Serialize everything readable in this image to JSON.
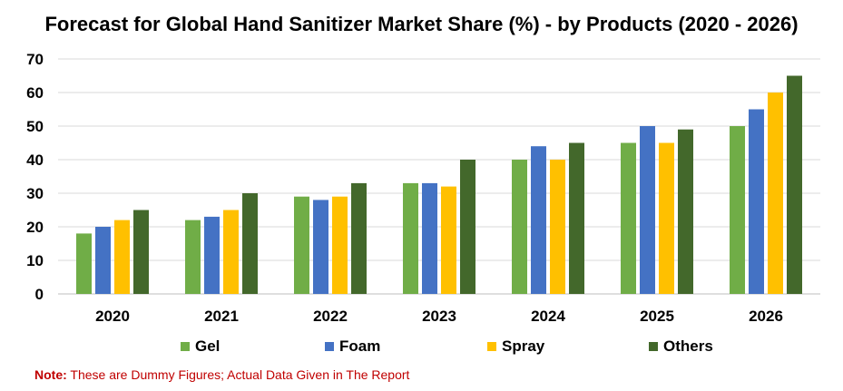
{
  "chart_data": {
    "type": "bar",
    "title": "Forecast for Global Hand Sanitizer Market Share (%) - by Products (2020 - 2026)",
    "xlabel": "",
    "ylabel": "",
    "categories": [
      "2020",
      "2021",
      "2022",
      "2023",
      "2024",
      "2025",
      "2026"
    ],
    "ylim": [
      0,
      70
    ],
    "yticks": [
      0,
      10,
      20,
      30,
      40,
      50,
      60,
      70
    ],
    "grid": true,
    "legend_position": "bottom",
    "series": [
      {
        "name": "Gel",
        "color": "#70ad47",
        "values": [
          18,
          22,
          29,
          33,
          40,
          45,
          50
        ]
      },
      {
        "name": "Foam",
        "color": "#4472c4",
        "values": [
          20,
          23,
          28,
          33,
          44,
          50,
          55
        ]
      },
      {
        "name": "Spray",
        "color": "#ffc000",
        "values": [
          22,
          25,
          29,
          32,
          40,
          45,
          60
        ]
      },
      {
        "name": "Others",
        "color": "#43682b",
        "values": [
          25,
          30,
          33,
          40,
          45,
          49,
          65
        ]
      }
    ]
  },
  "note": {
    "label": "Note:",
    "text": " These are Dummy Figures; Actual Data Given in The Report"
  }
}
